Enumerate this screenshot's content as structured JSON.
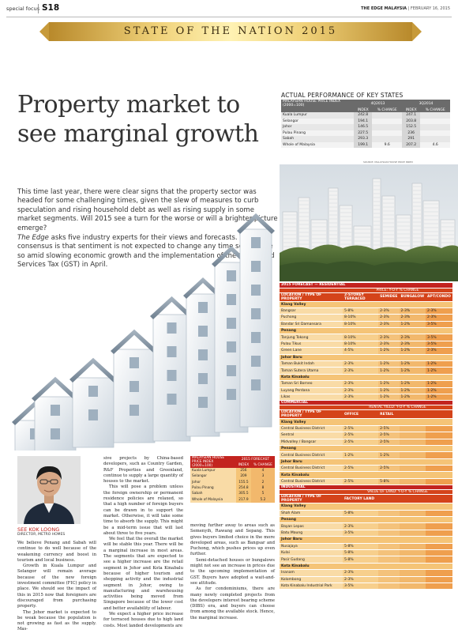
{
  "header": {
    "section": "special focus",
    "page": "S18",
    "publication": "THE EDGE MALAYSIA",
    "date": "| FEBRUARY 16, 2015"
  },
  "banner": {
    "title": "STATE OF THE NATION 2015"
  },
  "headline": "Property market to see marginal growth",
  "intro": {
    "p1": "This time last year, there were clear signs that the property sector was headed for some challenging times, given the slew of measures to curb speculation and rising household debt as well as rising supply in some market segments. Will 2015 see a turn for the worse or will a brighter picture emerge?",
    "p2_italic": "The Edge",
    "p2": " asks five industry experts for their views and forecasts. The consensus is that sentiment is not expected to change any time soon, more so amid slowing economic growth and the implementation of the Goods and Services Tax (GST) in April."
  },
  "key_states": {
    "title": "ACTUAL PERFORMANCE OF KEY STATES",
    "head_label": "MALAYSIAN HOUSE PRICE INDEX (2000=100)",
    "period1": "4Q2013",
    "period2": "3Q2014",
    "col_index": "INDEX",
    "col_change": "% CHANGE",
    "rows": [
      {
        "state": "Kuala Lumpur",
        "i1": "242.8",
        "c1": "",
        "i2": "247.1",
        "c2": ""
      },
      {
        "state": "Selangor",
        "i1": "194.1",
        "c1": "",
        "i2": "203.8",
        "c2": ""
      },
      {
        "state": "Johor",
        "i1": "146.5",
        "c1": "",
        "i2": "152.5",
        "c2": ""
      },
      {
        "state": "Pulau Pinang",
        "i1": "227.5",
        "c1": "",
        "i2": "236",
        "c2": ""
      },
      {
        "state": "Sabah",
        "i1": "293.3",
        "c1": "",
        "i2": "291",
        "c2": ""
      },
      {
        "state": "Whole of Malaysia",
        "i1": "199.1",
        "c1": "9.6",
        "i2": "207.2",
        "c2": "4.6"
      }
    ],
    "source": "SOURCE: MALAYSIAN HOUSE PRICE INDEX"
  },
  "forecast": {
    "residential_title": "2015 FORECAST — RESIDENTIAL",
    "residential_group": "PRICE: Y-O-Y % CHANGE",
    "residential_cols": [
      "LOCATION / TYPE OF PROPERTY",
      "2-STOREY TERRACED",
      "SEMIDEE",
      "BUNGALOW",
      "APT/CONDO"
    ],
    "residential": [
      {
        "region": "Klang Valley"
      },
      {
        "name": "Bangsar",
        "v": [
          "5-8%",
          "2-3%",
          "2-3%",
          "2-3%"
        ]
      },
      {
        "name": "Puchong",
        "v": [
          "8-10%",
          "2-3%",
          "2-3%",
          "2-3%"
        ]
      },
      {
        "name": "Bandar Sri Damansara",
        "v": [
          "8-10%",
          "2-3%",
          "1-2%",
          "3-5%"
        ]
      },
      {
        "region": "Penang"
      },
      {
        "name": "Tanjung Tokong",
        "v": [
          "8-10%",
          "2-3%",
          "2-3%",
          "3-5%"
        ]
      },
      {
        "name": "Pulau Tikus",
        "v": [
          "8-10%",
          "2-3%",
          "2-3%",
          "3-5%"
        ]
      },
      {
        "name": "Green Lane",
        "v": [
          "4-5%",
          "1-2%",
          "1-2%",
          "2-3%"
        ]
      },
      {
        "region": "Johor Baru"
      },
      {
        "name": "Taman Bukit Indah",
        "v": [
          "2-3%",
          "1-2%",
          "1-2%",
          "1-2%"
        ]
      },
      {
        "name": "Taman Sutera Utama",
        "v": [
          "2-3%",
          "1-2%",
          "1-2%",
          "1-2%"
        ]
      },
      {
        "region": "Kota Kinabalu"
      },
      {
        "name": "Taman Sri Borneo",
        "v": [
          "2-3%",
          "1-2%",
          "1-2%",
          "1-2%"
        ]
      },
      {
        "name": "Luyang Perdana",
        "v": [
          "2-3%",
          "1-2%",
          "1-2%",
          "1-2%"
        ]
      },
      {
        "name": "Likas",
        "v": [
          "2-3%",
          "1-2%",
          "1-2%",
          "1-2%"
        ]
      }
    ],
    "commercial_title": "COMMERCIAL",
    "commercial_group": "RENTAL YIELD: Y-O-Y % CHANGE",
    "commercial_cols": [
      "LOCATION / TYPE OF PROPERTY",
      "OFFICE",
      "RETAIL",
      "",
      ""
    ],
    "commercial": [
      {
        "region": "Klang Valley"
      },
      {
        "name": "Central Business District",
        "v": [
          "2-5%",
          "2-5%",
          "",
          ""
        ]
      },
      {
        "name": "Sentral",
        "v": [
          "2-5%",
          "2-5%",
          "",
          ""
        ]
      },
      {
        "name": "Midvalley / Bangsar",
        "v": [
          "2-5%",
          "2-5%",
          "",
          ""
        ]
      },
      {
        "region": "Penang"
      },
      {
        "name": "Central Business District",
        "v": [
          "1-2%",
          "1-2%",
          "",
          ""
        ]
      },
      {
        "region": "Johor Baru"
      },
      {
        "name": "Central Business District",
        "v": [
          "2-5%",
          "2-5%",
          "",
          ""
        ]
      },
      {
        "region": "Kota Kinabalu"
      },
      {
        "name": "Central Business District",
        "v": [
          "2-5%",
          "5-8%",
          "",
          ""
        ]
      }
    ],
    "industrial_title": "INDUSTRIAL",
    "industrial_group": "VALUE OF LAND: Y-O-Y % CHANGE",
    "industrial_cols": [
      "LOCATION / TYPE OF PROPERTY",
      "FACTORY LAND",
      "",
      "",
      ""
    ],
    "industrial": [
      {
        "region": "Klang Valley"
      },
      {
        "name": "Shah Alam",
        "v": [
          "5-8%",
          "",
          "",
          ""
        ]
      },
      {
        "region": "Penang"
      },
      {
        "name": "Bayan Lepas",
        "v": [
          "2-3%",
          "",
          "",
          ""
        ]
      },
      {
        "name": "Batu Maung",
        "v": [
          "3-5%",
          "",
          "",
          ""
        ]
      },
      {
        "region": "Johor Baru"
      },
      {
        "name": "Nusajaya",
        "v": [
          "5-8%",
          "",
          "",
          ""
        ]
      },
      {
        "name": "Kulai",
        "v": [
          "5-8%",
          "",
          "",
          ""
        ]
      },
      {
        "name": "Pasir Gudang",
        "v": [
          "5-8%",
          "",
          "",
          ""
        ]
      },
      {
        "region": "Kota Kinabalu"
      },
      {
        "name": "Inanam",
        "v": [
          "2-3%",
          "",
          "",
          ""
        ]
      },
      {
        "name": "Kolombong",
        "v": [
          "2-3%",
          "",
          "",
          ""
        ]
      },
      {
        "name": "Kota Kinabalu Industrial Park",
        "v": [
          "3-5%",
          "",
          "",
          ""
        ]
      }
    ]
  },
  "person": {
    "name": "SEE KOK LOONG",
    "role": "DIRECTOR, METRO HOMES"
  },
  "mini_table": {
    "label": "MALAYSIAN HOUSE PRICE INDEX (2000=100)",
    "group": "2015 FORECAST",
    "col_index": "INDEX",
    "col_change": "% CHANGE",
    "rows": [
      {
        "state": "Kuala Lumpur",
        "index": "256",
        "change": "4"
      },
      {
        "state": "Selangor",
        "index": "209",
        "change": "3"
      },
      {
        "state": "Johor",
        "index": "155.5",
        "change": "2"
      },
      {
        "state": "Pulau Pinang",
        "index": "254.8",
        "change": "8"
      },
      {
        "state": "Sabah",
        "index": "305.5",
        "change": "5"
      },
      {
        "state": "Whole of Malaysia",
        "index": "217.9",
        "change": "5.2"
      }
    ]
  },
  "body": {
    "col1": [
      "We believe Penang and Sabah will continue to do well because of the weakening currency and boost in tourism and local business.",
      "Growth in Kuala Lumpur and Selangor will remain average because of the new foreign investment committee (FIC) policy in place. We should see the impact of this in 2015 now that foreigners are discouraged from purchasing property.",
      "The Johor market is expected to be weak because the population is not growing as fast as the supply. Mas-"
    ],
    "col2": [
      "sive projects by China-based developers, such as Country Garden, R&F Properties and Greenland, continue to supply a large quantity of houses to the market.",
      "This will pose a problem unless the foreign ownership or permanent residence policies are relaxed, so that a high number of foreign buyers can be drawn in to support the market. Otherwise, it will take some time to absorb the supply. This might be a mid-term issue that will last about three to five years.",
      "We feel that the overall the market will be stable this year. There will be a marginal increase in most areas. The segments that are expected to see a higher increase are the retail segment in Johor and Kota Kinabalu because of higher tourism and shopping activity and the industrial segment in Johor, owing to manufacturing and warehousing activities being moved from Singapore because of the lower cost and better availability of labour.",
      "We expect a higher price increase for terraced houses due to high land costs. Most landed developments are"
    ],
    "col3": [
      "moving further away to areas such as Semenyih, Rawang and Sepang. This gives buyers limited choice in the more developed areas, such as Bangsar and Puchong, which pushes prices up even further.",
      "Semi-detached houses or bungalows might not see an increase in prices due to the upcoming implementation of GST. Buyers have adopted a wait-and-see attitude.",
      "As for condominiums, there are many newly completed projects from the developers interest bearing scheme (DIBS) era, and buyers can choose from among the available stock. Hence, the marginal increase."
    ]
  }
}
